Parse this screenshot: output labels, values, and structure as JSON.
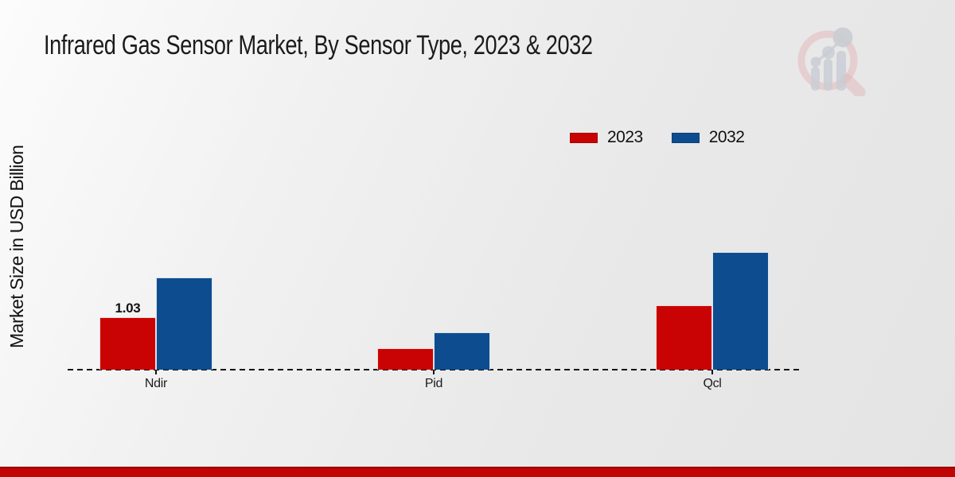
{
  "title": "Infrared Gas Sensor Market, By Sensor Type, 2023 & 2032",
  "y_axis_label": "Market Size in USD Billion",
  "legend": {
    "items": [
      {
        "label": "2023",
        "color": "#c90303"
      },
      {
        "label": "2032",
        "color": "#0d4d8f"
      }
    ]
  },
  "watermark_icon": "magnifier-bar-chart-logo",
  "colors": {
    "series_2023": "#c90303",
    "series_2032": "#0d4d8f",
    "footer_strip": "#c10404",
    "baseline": "#141414",
    "background_start": "#fcfcfc",
    "background_end": "#e4e4e4"
  },
  "chart_data": {
    "type": "bar",
    "categories": [
      "Ndir",
      "Pid",
      "Qcl"
    ],
    "series": [
      {
        "name": "2023",
        "color": "#c90303",
        "values": [
          1.03,
          0.42,
          1.26
        ]
      },
      {
        "name": "2032",
        "color": "#0d4d8f",
        "values": [
          1.81,
          0.73,
          2.31
        ]
      }
    ],
    "value_labels": [
      {
        "category": "Ndir",
        "series": "2023",
        "text": "1.03"
      }
    ],
    "title": "Infrared Gas Sensor Market, By Sensor Type, 2023 & 2032",
    "xlabel": "",
    "ylabel": "Market Size in USD Billion",
    "ylim": [
      0,
      2.6
    ],
    "grid": false,
    "legend_position": "upper-right-inside",
    "baseline_style": "dashed"
  }
}
